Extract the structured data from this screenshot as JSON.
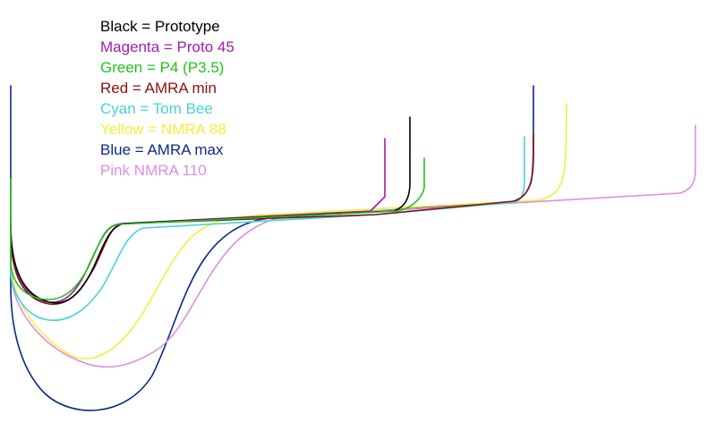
{
  "legend": [
    {
      "id": "black",
      "label": "Black = Prototype",
      "color": "#000000"
    },
    {
      "id": "magenta",
      "label": "Magenta = Proto 45",
      "color": "#a21caf"
    },
    {
      "id": "green",
      "label": "Green = P4 (P3.5)",
      "color": "#22c31a"
    },
    {
      "id": "red",
      "label": "Red = AMRA min",
      "color": "#8b0f0f"
    },
    {
      "id": "cyan",
      "label": "Cyan = Tom Bee",
      "color": "#45d4d9"
    },
    {
      "id": "yellow",
      "label": "Yellow = NMRA 88",
      "color": "#f0f03c"
    },
    {
      "id": "blue",
      "label": "Blue = AMRA max",
      "color": "#0c2a86"
    },
    {
      "id": "pink",
      "label": "Pink NMRA 110",
      "color": "#dd8ee0"
    }
  ]
}
